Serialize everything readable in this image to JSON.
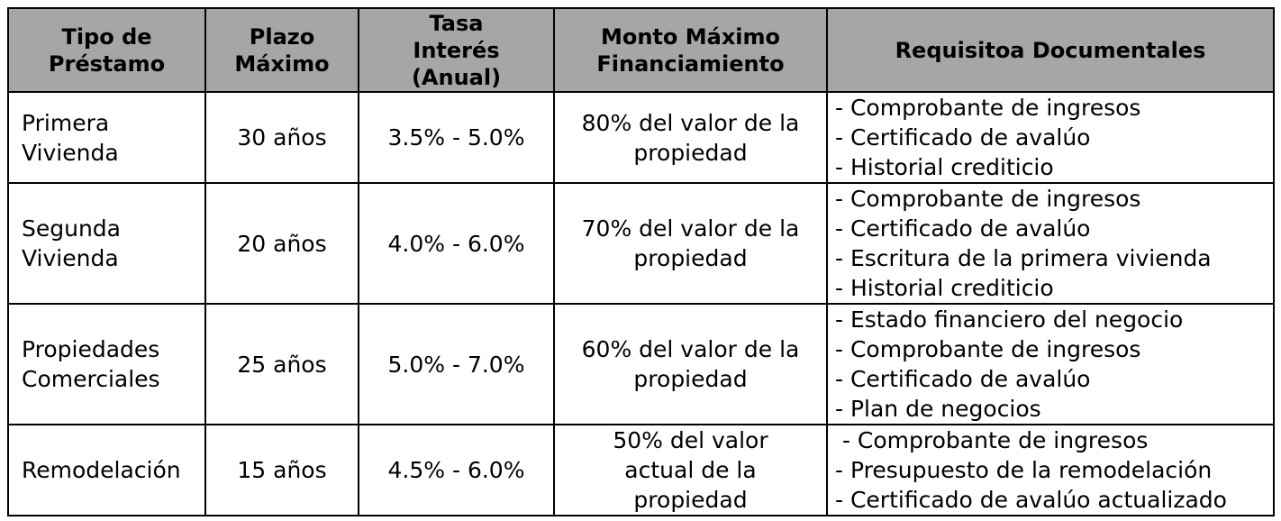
{
  "headers": [
    [
      "Tipo de",
      "Préstamo"
    ],
    [
      "Plazo",
      "Máximo"
    ],
    [
      "Tasa",
      "Interés",
      "(Anual)"
    ],
    [
      "Monto Máximo",
      "Financiamiento"
    ],
    [
      "Requisitoa Documentales"
    ]
  ],
  "rows": [
    {
      "tipo": [
        "Primera",
        "Vivienda"
      ],
      "plazo": "30 años",
      "tasa": "3.5% - 5.0%",
      "monto": [
        "80% del valor de la",
        "propiedad"
      ],
      "requisitos": [
        "- Comprobante de ingresos",
        "- Certificado de avalúo",
        "- Historial crediticio"
      ]
    },
    {
      "tipo": [
        "Segunda",
        "Vivienda"
      ],
      "plazo": "20 años",
      "tasa": "4.0% - 6.0%",
      "monto": [
        "70% del valor de la",
        "propiedad"
      ],
      "requisitos": [
        "- Comprobante de ingresos",
        "- Certificado de avalúo",
        "- Escritura de la primera vivienda",
        "- Historial crediticio"
      ]
    },
    {
      "tipo": [
        "Propiedades",
        "Comerciales"
      ],
      "plazo": "25 años",
      "tasa": "5.0% - 7.0%",
      "monto": [
        "60% del valor de la",
        "propiedad"
      ],
      "requisitos": [
        "- Estado financiero del negocio",
        "- Comprobante de ingresos",
        "- Certificado de avalúo",
        "- Plan de negocios"
      ]
    },
    {
      "tipo": [
        "Remodelación"
      ],
      "plazo": "15 años",
      "tasa": "4.5% - 6.0%",
      "monto": [
        "50% del valor",
        "actual de la",
        "propiedad"
      ],
      "requisitos": [
        " - Comprobante de ingresos",
        "- Presupuesto de la remodelación",
        "- Certificado de avalúo actualizado"
      ]
    }
  ],
  "colors": {
    "header_background": "#a6a6a6",
    "border": "#000000",
    "text": "#000000"
  }
}
